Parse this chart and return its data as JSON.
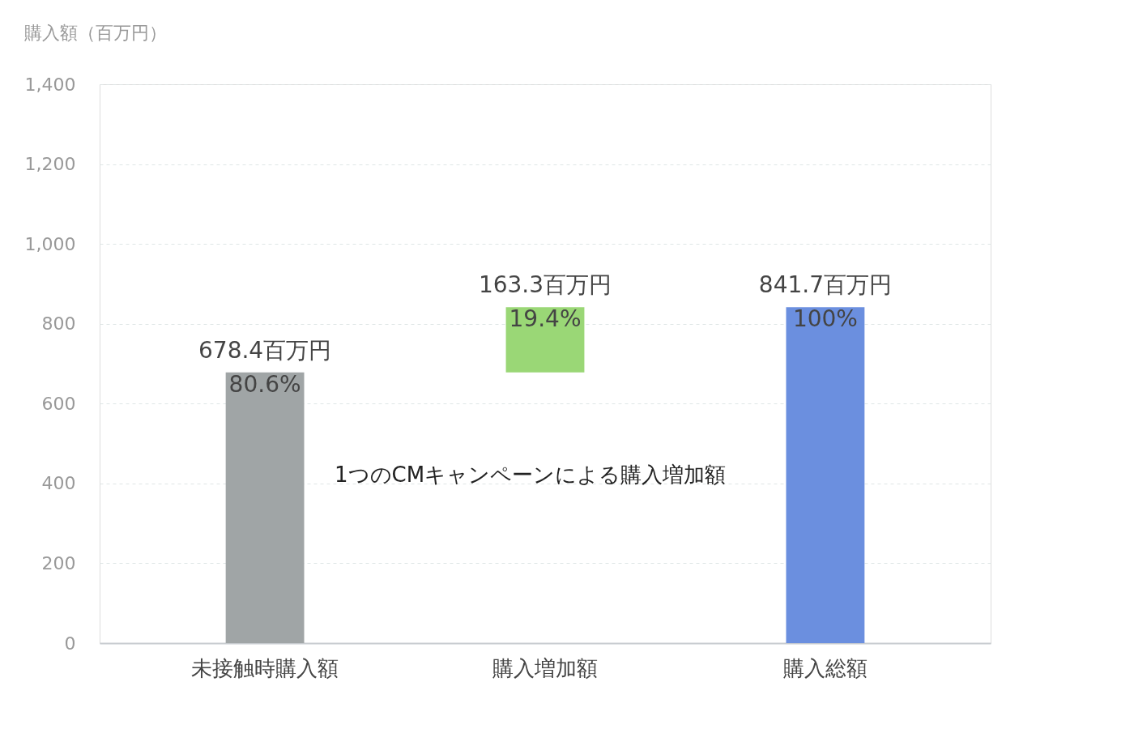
{
  "chart_data": {
    "type": "bar",
    "ylabel": "購入額（百万円）",
    "categories": [
      "未接触時購入額",
      "購入増加額",
      "購入総額"
    ],
    "values": [
      678.4,
      163.3,
      841.7
    ],
    "base": [
      0,
      678.4,
      0
    ],
    "colors": [
      "#a0a5a6",
      "#9ad776",
      "#6b8fdf"
    ],
    "value_labels": [
      "678.4百万円\n80.6%",
      "163.3百万円\n19.4%",
      "841.7百万円\n100%"
    ],
    "ylim": [
      0,
      1400
    ],
    "yticks": [
      0,
      200,
      400,
      600,
      800,
      {
        "value": 1000,
        "label": "1,000"
      },
      {
        "value": 1200,
        "label": "1,200"
      },
      {
        "value": 1400,
        "label": "1,400"
      }
    ],
    "grid": "y",
    "annotations": [
      "1つのCMキャンペーンによる購入増加額"
    ]
  }
}
